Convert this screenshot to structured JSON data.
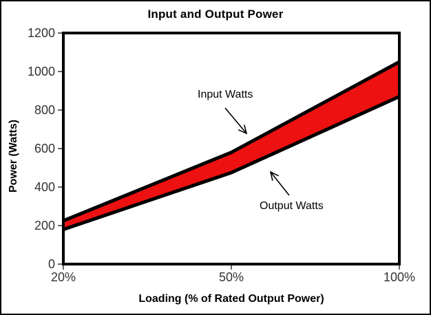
{
  "figure": {
    "background": "#ffffff",
    "border_color": "#000000"
  },
  "chart_data": {
    "type": "area",
    "title": "Input and Output Power",
    "xlabel": "Loading (% of Rated Output Power)",
    "ylabel": "Power (Watts)",
    "categories": [
      "20%",
      "50%",
      "100%"
    ],
    "series": [
      {
        "name": "Input Watts",
        "values": [
          225,
          580,
          1050
        ]
      },
      {
        "name": "Output Watts",
        "values": [
          180,
          475,
          870
        ]
      }
    ],
    "ylim": [
      0,
      1200
    ],
    "yticks": [
      0,
      200,
      400,
      600,
      800,
      1000,
      1200
    ],
    "grid": false,
    "legend": "none",
    "band_fill": "#ee1111",
    "line_color": "#000000",
    "tick_label_color": "#333333",
    "annotations": [
      {
        "text": "Input Watts",
        "points_to": "input-line"
      },
      {
        "text": "Output Watts",
        "points_to": "output-line"
      }
    ]
  }
}
